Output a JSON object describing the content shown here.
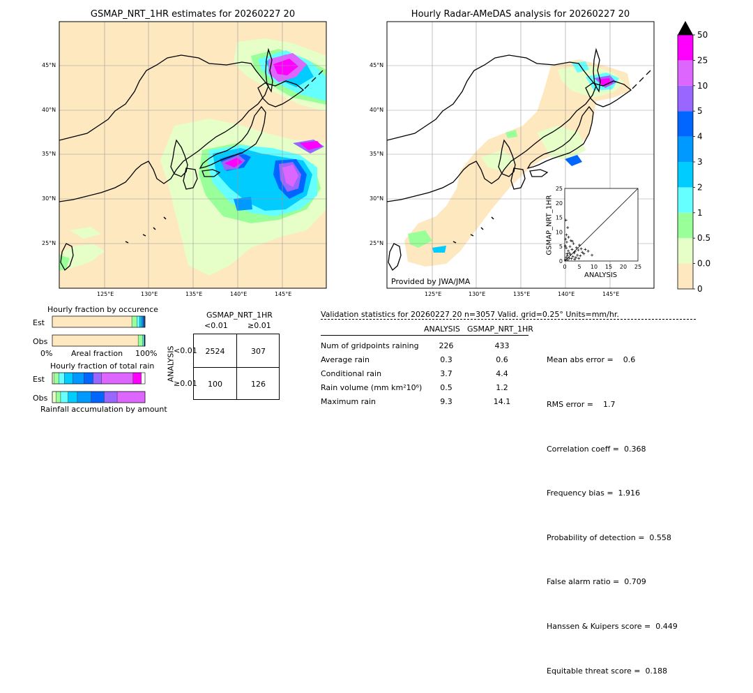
{
  "left_map": {
    "title": "GSMAP_NRT_1HR estimates for 20260227 20",
    "lon_ticks": [
      "125°E",
      "130°E",
      "135°E",
      "140°E",
      "145°E"
    ],
    "lat_ticks": [
      "45°N",
      "40°N",
      "35°N",
      "30°N",
      "25°N"
    ]
  },
  "right_map": {
    "title": "Hourly Radar-AMeDAS analysis for 20260227 20",
    "lon_ticks": [
      "125°E",
      "130°E",
      "135°E",
      "140°E",
      "145°E"
    ],
    "lat_ticks": [
      "45°N",
      "40°N",
      "35°N",
      "30°N",
      "25°N"
    ],
    "credit": "Provided by JWA/JMA"
  },
  "colorbar": {
    "labels": [
      "0",
      "0.01",
      "0.5",
      "1",
      "2",
      "3",
      "4",
      "5",
      "10",
      "25",
      "50"
    ],
    "colors": [
      "#fde8c0",
      "#e6ffc8",
      "#99ff99",
      "#66ffff",
      "#00ccff",
      "#0099ff",
      "#0066ff",
      "#9966ff",
      "#dd66ff",
      "#ff00ff",
      "#cc9933"
    ]
  },
  "scatter": {
    "xlabel": "ANALYSIS",
    "ylabel": "GSMAP_NRT_1HR",
    "ticks": [
      "0",
      "5",
      "10",
      "15",
      "20",
      "25"
    ]
  },
  "fraction_occurrence": {
    "title": "Hourly fraction by occurence",
    "row_est": "Est",
    "row_obs": "Obs",
    "axis_left": "0%",
    "axis_mid": "Areal fraction",
    "axis_right": "100%"
  },
  "fraction_total": {
    "title": "Hourly fraction of total rain",
    "row_est": "Est",
    "row_obs": "Obs",
    "footer": "Rainfall accumulation by amount"
  },
  "contingency": {
    "title": "GSMAP_NRT_1HR",
    "col_lt": "<0.01",
    "col_ge": "≥0.01",
    "side": "ANALYSIS",
    "row_lt": "<0.01",
    "row_ge": "≥0.01",
    "a": "2524",
    "b": "307",
    "c": "100",
    "d": "126"
  },
  "validation": {
    "header": "Validation statistics for 20260227 20  n=3057 Valid. grid=0.25° Units=mm/hr.",
    "col_analysis": "ANALYSIS",
    "col_gsmap": "GSMAP_NRT_1HR",
    "rows": [
      {
        "label": "Num of gridpoints raining",
        "analysis": "226",
        "gsmap": "433"
      },
      {
        "label": "Average rain",
        "analysis": "0.3",
        "gsmap": "0.6"
      },
      {
        "label": "Conditional rain",
        "analysis": "3.7",
        "gsmap": "4.4"
      },
      {
        "label": "Rain volume (mm km²10⁶)",
        "analysis": "0.5",
        "gsmap": "1.2"
      },
      {
        "label": "Maximum rain",
        "analysis": "9.3",
        "gsmap": "14.1"
      }
    ],
    "scores": [
      "Mean abs error =    0.6",
      "RMS error =    1.7",
      "Correlation coeff =  0.368",
      "Frequency bias =  1.916",
      "Probability of detection =  0.558",
      "False alarm ratio =  0.709",
      "Hanssen & Kuipers score =  0.449",
      "Equitable threat score =  0.188"
    ]
  },
  "chart_data": [
    {
      "type": "scatter",
      "xlabel": "ANALYSIS",
      "ylabel": "GSMAP_NRT_1HR",
      "xlim": [
        0,
        25
      ],
      "ylim": [
        0,
        25
      ],
      "points": [
        [
          0.2,
          0.3
        ],
        [
          0.5,
          1.2
        ],
        [
          0.8,
          2.5
        ],
        [
          1.0,
          0.4
        ],
        [
          1.2,
          3.5
        ],
        [
          1.5,
          1.0
        ],
        [
          1.8,
          5.0
        ],
        [
          2.0,
          2.2
        ],
        [
          2.3,
          0.8
        ],
        [
          2.5,
          4.0
        ],
        [
          2.8,
          1.5
        ],
        [
          3.0,
          6.0
        ],
        [
          3.2,
          2.8
        ],
        [
          3.5,
          3.3
        ],
        [
          3.8,
          1.2
        ],
        [
          4.0,
          4.6
        ],
        [
          4.3,
          2.0
        ],
        [
          4.6,
          3.8
        ],
        [
          5.0,
          5.5
        ],
        [
          5.3,
          1.8
        ],
        [
          5.6,
          4.2
        ],
        [
          6.0,
          3.0
        ],
        [
          6.5,
          2.5
        ],
        [
          7.0,
          4.0
        ],
        [
          0.3,
          7.5
        ],
        [
          0.6,
          9.0
        ],
        [
          1.0,
          11.5
        ],
        [
          0.4,
          14.1
        ],
        [
          0.7,
          6.5
        ],
        [
          1.3,
          8.2
        ],
        [
          2.1,
          7.0
        ],
        [
          2.6,
          6.8
        ],
        [
          0.2,
          5.2
        ],
        [
          0.5,
          4.5
        ],
        [
          1.6,
          2.7
        ],
        [
          0.9,
          1.9
        ],
        [
          3.4,
          0.6
        ],
        [
          4.8,
          0.9
        ],
        [
          9.3,
          2.0
        ],
        [
          8.0,
          3.4
        ]
      ]
    },
    {
      "type": "bar",
      "title": "Hourly fraction by occurence",
      "categories": [
        "Est",
        "Obs"
      ],
      "series": [
        {
          "values": [
            0.858,
            0.926
          ]
        },
        {
          "values": [
            0.054,
            0.049
          ]
        },
        {
          "values": [
            0.031,
            0.013
          ]
        },
        {
          "values": [
            0.024,
            0.006
          ]
        },
        {
          "values": [
            0.013,
            0.003
          ]
        },
        {
          "values": [
            0.01,
            0.002
          ]
        },
        {
          "values": [
            0.004,
            0.001
          ]
        },
        {
          "values": [
            0.004,
            0.0
          ]
        },
        {
          "values": [
            0.002,
            0.0
          ]
        }
      ]
    },
    {
      "type": "bar",
      "title": "Hourly fraction of total rain",
      "categories": [
        "Est",
        "Obs"
      ],
      "series": [
        {
          "values": [
            0.02,
            0.04
          ]
        },
        {
          "values": [
            0.05,
            0.05
          ]
        },
        {
          "values": [
            0.06,
            0.08
          ]
        },
        {
          "values": [
            0.09,
            0.1
          ]
        },
        {
          "values": [
            0.12,
            0.15
          ]
        },
        {
          "values": [
            0.1,
            0.14
          ]
        },
        {
          "values": [
            0.09,
            0.14
          ]
        },
        {
          "values": [
            0.34,
            0.3
          ]
        },
        {
          "values": [
            0.09,
            0.0
          ]
        }
      ]
    }
  ]
}
